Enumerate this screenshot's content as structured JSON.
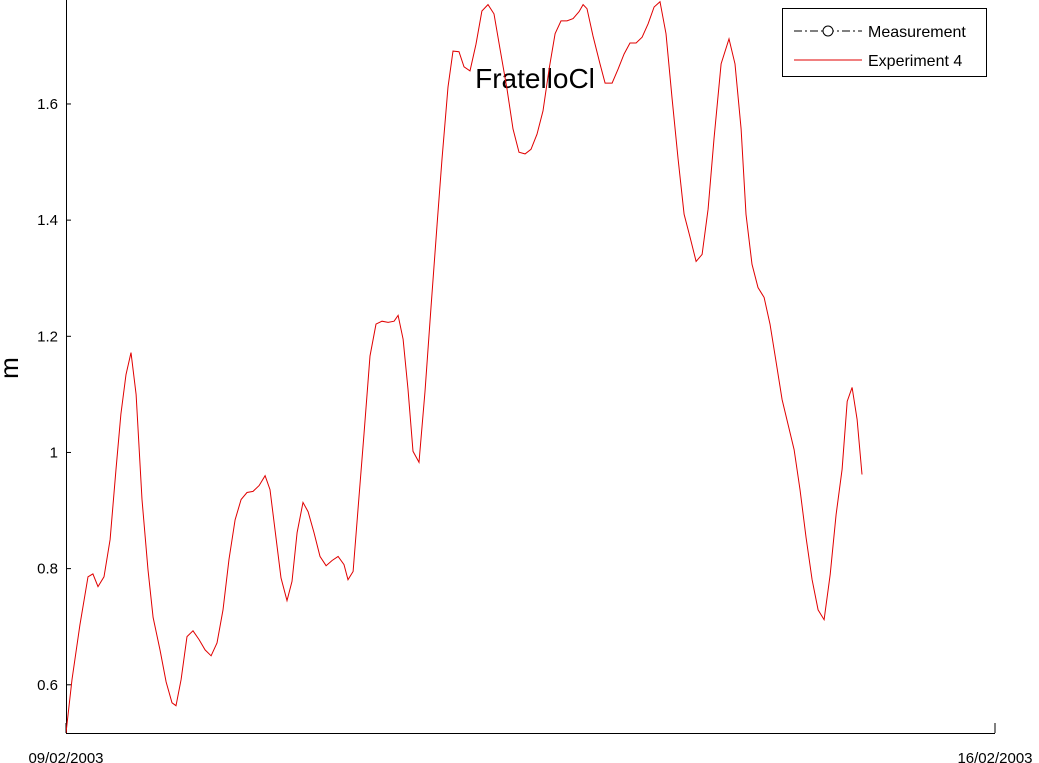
{
  "chart_data": {
    "type": "line",
    "title": "FratelloCl",
    "ylabel": "m",
    "xlim": [
      0,
      7
    ],
    "xticks": [
      {
        "value": 0,
        "label": "09/02/2003"
      },
      {
        "value": 7,
        "label": "16/02/2003"
      }
    ],
    "ylim": [
      0.517,
      1.779
    ],
    "yticks": [
      0.6,
      0.8,
      {
        "value": 1,
        "label": "1"
      },
      1.2,
      1.4,
      1.6
    ],
    "legend": "upper right",
    "grid": false,
    "series": [
      {
        "name": "Measurement",
        "color": "#000000",
        "linestyle": "-.",
        "marker": "o",
        "x": [],
        "values": []
      },
      {
        "name": "Experiment 4",
        "color": "#e00000",
        "linestyle": "-",
        "x": [
          0,
          0.045,
          0.105,
          0.166,
          0.203,
          0.241,
          0.286,
          0.332,
          0.377,
          0.414,
          0.452,
          0.49,
          0.528,
          0.573,
          0.618,
          0.656,
          0.708,
          0.754,
          0.799,
          0.829,
          0.867,
          0.912,
          0.957,
          1.002,
          1.048,
          1.093,
          1.138,
          1.183,
          1.228,
          1.274,
          1.319,
          1.364,
          1.409,
          1.455,
          1.5,
          1.537,
          1.575,
          1.62,
          1.665,
          1.703,
          1.741,
          1.786,
          1.824,
          1.869,
          1.914,
          1.96,
          2.005,
          2.05,
          2.095,
          2.125,
          2.163,
          2.2,
          2.246,
          2.291,
          2.336,
          2.381,
          2.427,
          2.472,
          2.502,
          2.54,
          2.577,
          2.615,
          2.66,
          2.705,
          2.75,
          2.796,
          2.833,
          2.878,
          2.916,
          2.961,
          2.999,
          3.044,
          3.089,
          3.134,
          3.18,
          3.225,
          3.27,
          3.323,
          3.368,
          3.413,
          3.459,
          3.504,
          3.549,
          3.594,
          3.64,
          3.685,
          3.73,
          3.775,
          3.821,
          3.866,
          3.896,
          3.926,
          3.971,
          4.024,
          4.062,
          4.115,
          4.16,
          4.205,
          4.25,
          4.296,
          4.341,
          4.386,
          4.431,
          4.476,
          4.521,
          4.567,
          4.612,
          4.657,
          4.702,
          4.748,
          4.793,
          4.838,
          4.883,
          4.936,
          4.996,
          5.041,
          5.087,
          5.124,
          5.169,
          5.214,
          5.26,
          5.305,
          5.35,
          5.396,
          5.441,
          5.486,
          5.531,
          5.577,
          5.622,
          5.667,
          5.712,
          5.758,
          5.803,
          5.848,
          5.886,
          5.923,
          5.961,
          5.998
        ],
        "values": [
          0.517,
          0.609,
          0.703,
          0.786,
          0.791,
          0.769,
          0.786,
          0.85,
          0.971,
          1.066,
          1.134,
          1.172,
          1.1,
          0.919,
          0.798,
          0.716,
          0.66,
          0.605,
          0.569,
          0.564,
          0.609,
          0.683,
          0.693,
          0.678,
          0.66,
          0.65,
          0.672,
          0.729,
          0.816,
          0.884,
          0.919,
          0.931,
          0.933,
          0.943,
          0.96,
          0.936,
          0.867,
          0.784,
          0.745,
          0.778,
          0.862,
          0.914,
          0.898,
          0.862,
          0.821,
          0.805,
          0.814,
          0.821,
          0.807,
          0.781,
          0.795,
          0.902,
          1.034,
          1.166,
          1.221,
          1.226,
          1.224,
          1.226,
          1.236,
          1.195,
          1.109,
          1.002,
          0.983,
          1.105,
          1.25,
          1.393,
          1.505,
          1.629,
          1.691,
          1.69,
          1.664,
          1.657,
          1.703,
          1.76,
          1.771,
          1.755,
          1.695,
          1.626,
          1.557,
          1.517,
          1.514,
          1.522,
          1.548,
          1.588,
          1.66,
          1.721,
          1.743,
          1.743,
          1.747,
          1.759,
          1.771,
          1.764,
          1.717,
          1.669,
          1.636,
          1.636,
          1.66,
          1.686,
          1.705,
          1.705,
          1.715,
          1.738,
          1.767,
          1.776,
          1.721,
          1.609,
          1.505,
          1.41,
          1.371,
          1.329,
          1.341,
          1.419,
          1.54,
          1.669,
          1.712,
          1.669,
          1.557,
          1.41,
          1.324,
          1.284,
          1.267,
          1.221,
          1.157,
          1.091,
          1.048,
          1.005,
          0.936,
          0.853,
          0.781,
          0.729,
          0.712,
          0.79,
          0.893,
          0.971,
          1.088,
          1.112,
          1.057,
          0.962
        ]
      }
    ]
  }
}
